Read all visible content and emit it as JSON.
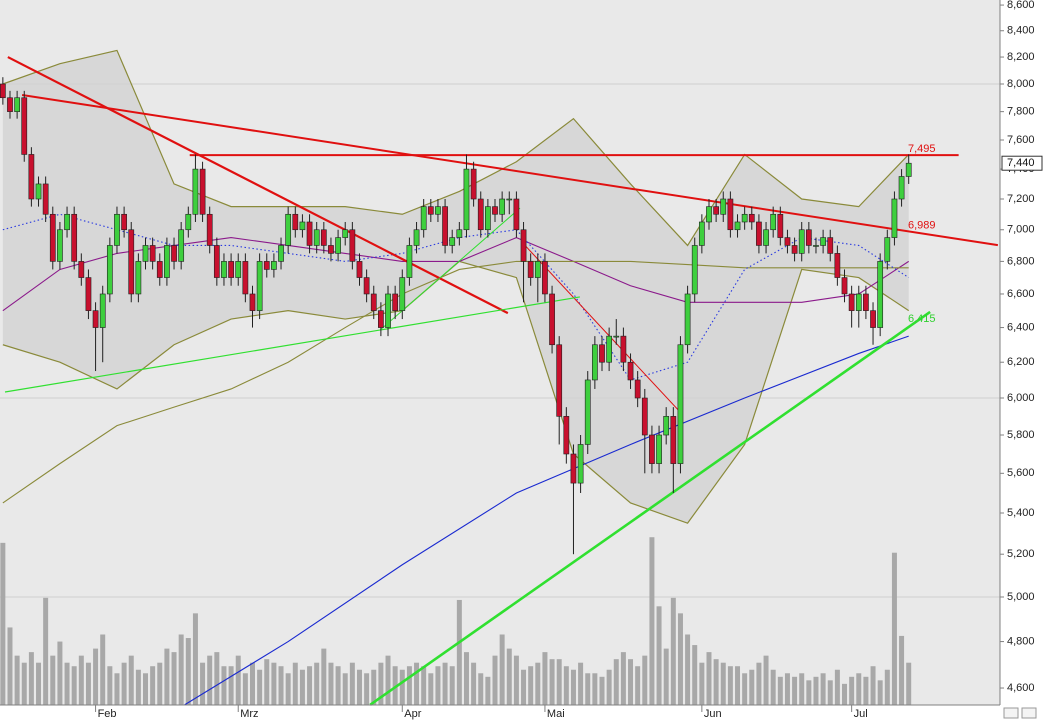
{
  "chart_data": {
    "type": "candlestick",
    "log_scale": true,
    "grid": true,
    "xlim": [
      -0.4,
      139.8
    ],
    "ylim": [
      4529,
      8640
    ],
    "y2lim": [
      0,
      1000
    ],
    "xticks": [
      {
        "value": 13,
        "label": "Feb"
      },
      {
        "value": 33,
        "label": "Mrz"
      },
      {
        "value": 56,
        "label": "Apr"
      },
      {
        "value": 76,
        "label": "Mai"
      },
      {
        "value": 98,
        "label": "Jun"
      },
      {
        "value": 119,
        "label": "Jul"
      }
    ],
    "yticks": [
      {
        "value": 4600,
        "label": "4,600"
      },
      {
        "value": 4800,
        "label": "4,800"
      },
      {
        "value": 5000,
        "label": "5,000"
      },
      {
        "value": 5200,
        "label": "5,200"
      },
      {
        "value": 5400,
        "label": "5,400"
      },
      {
        "value": 5600,
        "label": "5,600"
      },
      {
        "value": 5800,
        "label": "5,800"
      },
      {
        "value": 6000,
        "label": "6,000"
      },
      {
        "value": 6200,
        "label": "6,200"
      },
      {
        "value": 6400,
        "label": "6,400"
      },
      {
        "value": 6600,
        "label": "6,600"
      },
      {
        "value": 6800,
        "label": "6,800"
      },
      {
        "value": 7000,
        "label": "7,000"
      },
      {
        "value": 7200,
        "label": "7,200"
      },
      {
        "value": 7400,
        "label": "7,400"
      },
      {
        "value": 7600,
        "label": "7,600"
      },
      {
        "value": 7800,
        "label": "7,800"
      },
      {
        "value": 8000,
        "label": "8,000"
      },
      {
        "value": 8200,
        "label": "8,200"
      },
      {
        "value": 8400,
        "label": "8,400"
      },
      {
        "value": 8600,
        "label": "8,600"
      }
    ],
    "grid_values": [
      5000,
      6000,
      8000
    ],
    "last_price": {
      "value": 7440,
      "label": "7,440"
    },
    "candles": {
      "up_color": "#3ecf3e",
      "down_color": "#c8102e",
      "outline": "#202020",
      "ohlc": [
        [
          8000,
          8050,
          7850,
          7900
        ],
        [
          7900,
          7950,
          7750,
          7800
        ],
        [
          7800,
          7950,
          7750,
          7900
        ],
        [
          7900,
          7950,
          7450,
          7500
        ],
        [
          7500,
          7550,
          7150,
          7200
        ],
        [
          7200,
          7350,
          7150,
          7300
        ],
        [
          7300,
          7350,
          7050,
          7100
        ],
        [
          7100,
          7150,
          6750,
          6800
        ],
        [
          6800,
          7050,
          6750,
          7000
        ],
        [
          7000,
          7150,
          6950,
          7100
        ],
        [
          7100,
          7150,
          6750,
          6800
        ],
        [
          6800,
          6850,
          6650,
          6700
        ],
        [
          6700,
          6750,
          6450,
          6500
        ],
        [
          6500,
          6550,
          6150,
          6400
        ],
        [
          6400,
          6650,
          6200,
          6600
        ],
        [
          6600,
          6950,
          6550,
          6900
        ],
        [
          6900,
          7150,
          6850,
          7100
        ],
        [
          7100,
          7150,
          6950,
          7000
        ],
        [
          7000,
          7050,
          6550,
          6600
        ],
        [
          6600,
          6850,
          6550,
          6800
        ],
        [
          6800,
          6950,
          6750,
          6900
        ],
        [
          6900,
          6950,
          6750,
          6800
        ],
        [
          6800,
          6850,
          6650,
          6700
        ],
        [
          6700,
          6950,
          6650,
          6900
        ],
        [
          6900,
          6950,
          6750,
          6800
        ],
        [
          6800,
          7050,
          6750,
          7000
        ],
        [
          7000,
          7150,
          6950,
          7100
        ],
        [
          7100,
          7500,
          7050,
          7400
        ],
        [
          7400,
          7450,
          7050,
          7100
        ],
        [
          7100,
          7150,
          6850,
          6900
        ],
        [
          6900,
          6950,
          6650,
          6700
        ],
        [
          6700,
          6850,
          6650,
          6800
        ],
        [
          6800,
          6850,
          6650,
          6700
        ],
        [
          6700,
          6850,
          6650,
          6800
        ],
        [
          6800,
          6850,
          6550,
          6600
        ],
        [
          6600,
          6650,
          6400,
          6500
        ],
        [
          6500,
          6850,
          6450,
          6800
        ],
        [
          6800,
          6850,
          6700,
          6750
        ],
        [
          6750,
          6850,
          6700,
          6800
        ],
        [
          6800,
          6950,
          6750,
          6900
        ],
        [
          6900,
          7150,
          6850,
          7100
        ],
        [
          7100,
          7150,
          6950,
          7000
        ],
        [
          7000,
          7100,
          6950,
          7050
        ],
        [
          7050,
          7100,
          6850,
          6900
        ],
        [
          6900,
          7050,
          6850,
          7000
        ],
        [
          7000,
          7050,
          6850,
          6900
        ],
        [
          6900,
          6950,
          6800,
          6850
        ],
        [
          6850,
          7000,
          6800,
          6950
        ],
        [
          6950,
          7050,
          6900,
          7000
        ],
        [
          7000,
          7050,
          6750,
          6800
        ],
        [
          6800,
          6850,
          6650,
          6700
        ],
        [
          6700,
          6750,
          6550,
          6600
        ],
        [
          6600,
          6650,
          6450,
          6500
        ],
        [
          6500,
          6550,
          6350,
          6400
        ],
        [
          6400,
          6650,
          6350,
          6600
        ],
        [
          6600,
          6650,
          6450,
          6500
        ],
        [
          6500,
          6750,
          6450,
          6700
        ],
        [
          6700,
          6950,
          6650,
          6900
        ],
        [
          6900,
          7050,
          6850,
          7000
        ],
        [
          7000,
          7200,
          6950,
          7150
        ],
        [
          7150,
          7200,
          7050,
          7100
        ],
        [
          7100,
          7200,
          7050,
          7150
        ],
        [
          7150,
          7200,
          6850,
          6900
        ],
        [
          6900,
          7000,
          6850,
          6950
        ],
        [
          6950,
          7050,
          6900,
          7000
        ],
        [
          7000,
          7500,
          6950,
          7400
        ],
        [
          7400,
          7450,
          7150,
          7200
        ],
        [
          7200,
          7250,
          6950,
          7000
        ],
        [
          7000,
          7200,
          6950,
          7150
        ],
        [
          7150,
          7200,
          7050,
          7100
        ],
        [
          7100,
          7250,
          7050,
          7200
        ],
        [
          7200,
          7250,
          7100,
          7200
        ],
        [
          7200,
          7250,
          6950,
          7000
        ],
        [
          7000,
          7050,
          6550,
          6800
        ],
        [
          6800,
          6850,
          6650,
          6700
        ],
        [
          6700,
          6850,
          6550,
          6800
        ],
        [
          6800,
          6850,
          6550,
          6600
        ],
        [
          6600,
          6650,
          6250,
          6300
        ],
        [
          6300,
          6350,
          5750,
          5900
        ],
        [
          5900,
          5950,
          5650,
          5700
        ],
        [
          5700,
          5750,
          5200,
          5550
        ],
        [
          5550,
          5800,
          5500,
          5750
        ],
        [
          5750,
          6150,
          5700,
          6100
        ],
        [
          6100,
          6350,
          6050,
          6300
        ],
        [
          6300,
          6350,
          6150,
          6200
        ],
        [
          6200,
          6400,
          6150,
          6350
        ],
        [
          6350,
          6450,
          6300,
          6350
        ],
        [
          6350,
          6400,
          6150,
          6200
        ],
        [
          6200,
          6250,
          6050,
          6100
        ],
        [
          6100,
          6150,
          5950,
          6000
        ],
        [
          6000,
          6050,
          5600,
          5800
        ],
        [
          5800,
          5850,
          5600,
          5650
        ],
        [
          5650,
          5850,
          5600,
          5800
        ],
        [
          5800,
          5950,
          5750,
          5900
        ],
        [
          5900,
          5950,
          5500,
          5650
        ],
        [
          5650,
          6350,
          5600,
          6300
        ],
        [
          6300,
          6650,
          6250,
          6600
        ],
        [
          6600,
          6950,
          6550,
          6900
        ],
        [
          6900,
          7100,
          6850,
          7050
        ],
        [
          7050,
          7200,
          7000,
          7150
        ],
        [
          7150,
          7200,
          7050,
          7100
        ],
        [
          7100,
          7250,
          7050,
          7200
        ],
        [
          7200,
          7250,
          6950,
          7000
        ],
        [
          7000,
          7100,
          6950,
          7050
        ],
        [
          7050,
          7150,
          7000,
          7100
        ],
        [
          7100,
          7150,
          7000,
          7050
        ],
        [
          7050,
          7100,
          6850,
          6900
        ],
        [
          6900,
          7050,
          6850,
          7000
        ],
        [
          7000,
          7150,
          6950,
          7100
        ],
        [
          7100,
          7150,
          6900,
          6950
        ],
        [
          6950,
          7000,
          6850,
          6900
        ],
        [
          6900,
          6950,
          6800,
          6850
        ],
        [
          6850,
          7050,
          6800,
          7000
        ],
        [
          7000,
          7050,
          6850,
          6900
        ],
        [
          6900,
          6950,
          6850,
          6900
        ],
        [
          6900,
          7000,
          6850,
          6950
        ],
        [
          6950,
          7000,
          6800,
          6850
        ],
        [
          6850,
          6900,
          6650,
          6700
        ],
        [
          6700,
          6750,
          6550,
          6600
        ],
        [
          6600,
          6650,
          6400,
          6500
        ],
        [
          6500,
          6650,
          6400,
          6600
        ],
        [
          6600,
          6650,
          6450,
          6500
        ],
        [
          6500,
          6550,
          6300,
          6400
        ],
        [
          6400,
          6850,
          6350,
          6800
        ],
        [
          6800,
          7000,
          6750,
          6950
        ],
        [
          6950,
          7250,
          6900,
          7200
        ],
        [
          7200,
          7400,
          7150,
          7350
        ],
        [
          7350,
          7500,
          7300,
          7440
        ]
      ]
    },
    "volume": {
      "axis": "y2",
      "color": "#a8a8a8",
      "values": [
        230,
        110,
        70,
        60,
        75,
        60,
        152,
        70,
        90,
        60,
        55,
        70,
        60,
        80,
        100,
        55,
        45,
        60,
        70,
        50,
        45,
        55,
        60,
        80,
        75,
        100,
        95,
        130,
        60,
        70,
        75,
        55,
        55,
        70,
        45,
        60,
        50,
        65,
        60,
        55,
        45,
        60,
        50,
        55,
        60,
        80,
        60,
        55,
        45,
        60,
        50,
        45,
        50,
        60,
        70,
        55,
        50,
        55,
        60,
        55,
        45,
        55,
        60,
        55,
        149,
        75,
        60,
        45,
        40,
        70,
        100,
        80,
        70,
        50,
        55,
        60,
        75,
        65,
        65,
        55,
        50,
        60,
        45,
        45,
        40,
        50,
        65,
        75,
        65,
        55,
        70,
        238,
        140,
        80,
        152,
        130,
        100,
        85,
        60,
        75,
        65,
        60,
        55,
        55,
        45,
        50,
        60,
        70,
        50,
        40,
        45,
        40,
        45,
        35,
        40,
        45,
        35,
        50,
        30,
        40,
        45,
        40,
        55,
        35,
        50,
        216,
        98,
        60
      ]
    },
    "bands": {
      "color": "#8a8a3a",
      "fill": "#d0d0d0",
      "x": [
        0,
        8,
        16,
        24,
        32,
        40,
        48,
        56,
        64,
        72,
        80,
        88,
        96,
        104,
        112,
        120,
        127
      ],
      "upper": [
        8000,
        8150,
        8250,
        7300,
        7150,
        7150,
        7150,
        7100,
        7250,
        7450,
        7750,
        7300,
        6900,
        7500,
        7200,
        7150,
        7500
      ],
      "lower": [
        6300,
        6200,
        6050,
        6300,
        6450,
        6500,
        6450,
        6500,
        6800,
        6700,
        5700,
        5450,
        5350,
        5750,
        6750,
        6700,
        6500
      ]
    },
    "overlays": [
      {
        "color": "#8b1a8b",
        "x": [
          0,
          8,
          16,
          24,
          32,
          40,
          48,
          56,
          64,
          72,
          80,
          88,
          96,
          104,
          112,
          120,
          127
        ],
        "values": [
          6500,
          6750,
          6850,
          6900,
          6950,
          6900,
          6850,
          6800,
          6800,
          6950,
          6800,
          6650,
          6550,
          6550,
          6550,
          6600,
          6800
        ]
      },
      {
        "color": "#8a8a3a",
        "x": [
          0,
          8,
          16,
          24,
          32,
          40,
          48,
          56,
          64,
          72,
          80,
          88,
          96,
          104,
          112,
          120,
          127
        ],
        "values": [
          5450,
          5650,
          5850,
          5950,
          6050,
          6200,
          6400,
          6600,
          6750,
          6800,
          6800,
          6800,
          6780,
          6760,
          6760,
          6760,
          6760
        ]
      },
      {
        "color": "#2a3ae0",
        "dotted": true,
        "x": [
          0,
          8,
          16,
          24,
          32,
          40,
          48,
          56,
          64,
          72,
          80,
          88,
          96,
          104,
          112,
          120,
          127
        ],
        "values": [
          7000,
          7100,
          7000,
          6900,
          6900,
          6850,
          6800,
          6850,
          6950,
          7000,
          6600,
          6100,
          6200,
          6750,
          6950,
          6900,
          6700
        ]
      },
      {
        "color": "#1a2ad0",
        "x": [
          25.5,
          40,
          56,
          72,
          88,
          104,
          120,
          127
        ],
        "values": [
          4530,
          4800,
          5150,
          5500,
          5750,
          6000,
          6250,
          6350
        ]
      }
    ],
    "trendlines": [
      {
        "color": "#e01010",
        "width": 2.2,
        "x": [
          0.7,
          70.8
        ],
        "values": [
          8200,
          6485
        ]
      },
      {
        "color": "#e01010",
        "width": 2,
        "x": [
          2.7,
          139.5
        ],
        "values": [
          7920,
          6902
        ]
      },
      {
        "color": "#e01010",
        "width": 2,
        "x": [
          26.2,
          134
        ],
        "values": [
          7495,
          7495
        ]
      },
      {
        "color": "#e01010",
        "width": 1,
        "x": [
          72.8,
          94.7
        ],
        "values": [
          6920,
          5934
        ]
      },
      {
        "color": "#30e030",
        "width": 1.2,
        "x": [
          0.3,
          80.9
        ],
        "values": [
          6033,
          6582
        ]
      },
      {
        "color": "#30e030",
        "width": 1,
        "x": [
          52.9,
          72.5
        ],
        "values": [
          6386,
          7140
        ]
      },
      {
        "color": "#30e030",
        "width": 2.6,
        "x": [
          51.5,
          130
        ],
        "values": [
          4530,
          6492
        ]
      }
    ],
    "annotations": [
      {
        "value": 7495,
        "label": "7,495",
        "color": "#e01010"
      },
      {
        "value": 6989,
        "label": "6,989",
        "color": "#e01010"
      },
      {
        "value": 6415,
        "label": "6,415",
        "color": "#30d030"
      }
    ]
  }
}
